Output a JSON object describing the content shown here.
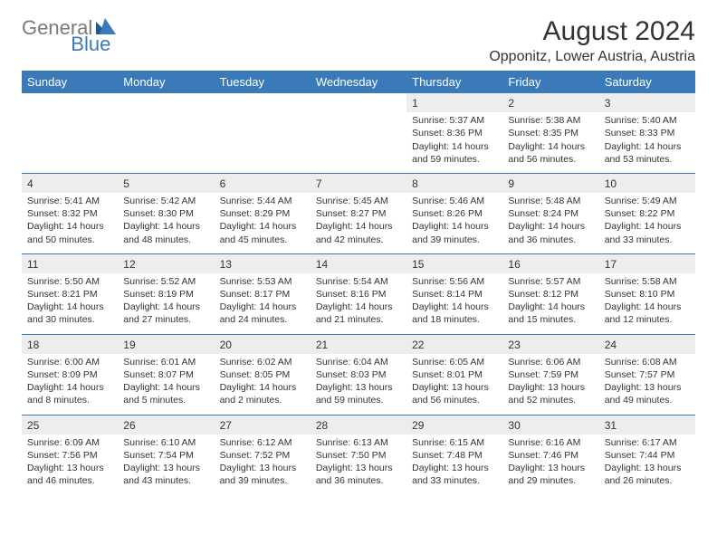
{
  "logo": {
    "part1": "General",
    "part2": "Blue"
  },
  "title": "August 2024",
  "location": "Opponitz, Lower Austria, Austria",
  "colors": {
    "header_bg": "#3a7ab8",
    "header_text": "#ffffff",
    "daynum_bg": "#ededed",
    "rule": "#3a7ab8",
    "logo_gray": "#7a7a7a",
    "logo_blue": "#3a7ab8"
  },
  "weekdays": [
    "Sunday",
    "Monday",
    "Tuesday",
    "Wednesday",
    "Thursday",
    "Friday",
    "Saturday"
  ],
  "weeks": [
    [
      null,
      null,
      null,
      null,
      {
        "n": "1",
        "sr": "Sunrise: 5:37 AM",
        "ss": "Sunset: 8:36 PM",
        "dl": "Daylight: 14 hours and 59 minutes."
      },
      {
        "n": "2",
        "sr": "Sunrise: 5:38 AM",
        "ss": "Sunset: 8:35 PM",
        "dl": "Daylight: 14 hours and 56 minutes."
      },
      {
        "n": "3",
        "sr": "Sunrise: 5:40 AM",
        "ss": "Sunset: 8:33 PM",
        "dl": "Daylight: 14 hours and 53 minutes."
      }
    ],
    [
      {
        "n": "4",
        "sr": "Sunrise: 5:41 AM",
        "ss": "Sunset: 8:32 PM",
        "dl": "Daylight: 14 hours and 50 minutes."
      },
      {
        "n": "5",
        "sr": "Sunrise: 5:42 AM",
        "ss": "Sunset: 8:30 PM",
        "dl": "Daylight: 14 hours and 48 minutes."
      },
      {
        "n": "6",
        "sr": "Sunrise: 5:44 AM",
        "ss": "Sunset: 8:29 PM",
        "dl": "Daylight: 14 hours and 45 minutes."
      },
      {
        "n": "7",
        "sr": "Sunrise: 5:45 AM",
        "ss": "Sunset: 8:27 PM",
        "dl": "Daylight: 14 hours and 42 minutes."
      },
      {
        "n": "8",
        "sr": "Sunrise: 5:46 AM",
        "ss": "Sunset: 8:26 PM",
        "dl": "Daylight: 14 hours and 39 minutes."
      },
      {
        "n": "9",
        "sr": "Sunrise: 5:48 AM",
        "ss": "Sunset: 8:24 PM",
        "dl": "Daylight: 14 hours and 36 minutes."
      },
      {
        "n": "10",
        "sr": "Sunrise: 5:49 AM",
        "ss": "Sunset: 8:22 PM",
        "dl": "Daylight: 14 hours and 33 minutes."
      }
    ],
    [
      {
        "n": "11",
        "sr": "Sunrise: 5:50 AM",
        "ss": "Sunset: 8:21 PM",
        "dl": "Daylight: 14 hours and 30 minutes."
      },
      {
        "n": "12",
        "sr": "Sunrise: 5:52 AM",
        "ss": "Sunset: 8:19 PM",
        "dl": "Daylight: 14 hours and 27 minutes."
      },
      {
        "n": "13",
        "sr": "Sunrise: 5:53 AM",
        "ss": "Sunset: 8:17 PM",
        "dl": "Daylight: 14 hours and 24 minutes."
      },
      {
        "n": "14",
        "sr": "Sunrise: 5:54 AM",
        "ss": "Sunset: 8:16 PM",
        "dl": "Daylight: 14 hours and 21 minutes."
      },
      {
        "n": "15",
        "sr": "Sunrise: 5:56 AM",
        "ss": "Sunset: 8:14 PM",
        "dl": "Daylight: 14 hours and 18 minutes."
      },
      {
        "n": "16",
        "sr": "Sunrise: 5:57 AM",
        "ss": "Sunset: 8:12 PM",
        "dl": "Daylight: 14 hours and 15 minutes."
      },
      {
        "n": "17",
        "sr": "Sunrise: 5:58 AM",
        "ss": "Sunset: 8:10 PM",
        "dl": "Daylight: 14 hours and 12 minutes."
      }
    ],
    [
      {
        "n": "18",
        "sr": "Sunrise: 6:00 AM",
        "ss": "Sunset: 8:09 PM",
        "dl": "Daylight: 14 hours and 8 minutes."
      },
      {
        "n": "19",
        "sr": "Sunrise: 6:01 AM",
        "ss": "Sunset: 8:07 PM",
        "dl": "Daylight: 14 hours and 5 minutes."
      },
      {
        "n": "20",
        "sr": "Sunrise: 6:02 AM",
        "ss": "Sunset: 8:05 PM",
        "dl": "Daylight: 14 hours and 2 minutes."
      },
      {
        "n": "21",
        "sr": "Sunrise: 6:04 AM",
        "ss": "Sunset: 8:03 PM",
        "dl": "Daylight: 13 hours and 59 minutes."
      },
      {
        "n": "22",
        "sr": "Sunrise: 6:05 AM",
        "ss": "Sunset: 8:01 PM",
        "dl": "Daylight: 13 hours and 56 minutes."
      },
      {
        "n": "23",
        "sr": "Sunrise: 6:06 AM",
        "ss": "Sunset: 7:59 PM",
        "dl": "Daylight: 13 hours and 52 minutes."
      },
      {
        "n": "24",
        "sr": "Sunrise: 6:08 AM",
        "ss": "Sunset: 7:57 PM",
        "dl": "Daylight: 13 hours and 49 minutes."
      }
    ],
    [
      {
        "n": "25",
        "sr": "Sunrise: 6:09 AM",
        "ss": "Sunset: 7:56 PM",
        "dl": "Daylight: 13 hours and 46 minutes."
      },
      {
        "n": "26",
        "sr": "Sunrise: 6:10 AM",
        "ss": "Sunset: 7:54 PM",
        "dl": "Daylight: 13 hours and 43 minutes."
      },
      {
        "n": "27",
        "sr": "Sunrise: 6:12 AM",
        "ss": "Sunset: 7:52 PM",
        "dl": "Daylight: 13 hours and 39 minutes."
      },
      {
        "n": "28",
        "sr": "Sunrise: 6:13 AM",
        "ss": "Sunset: 7:50 PM",
        "dl": "Daylight: 13 hours and 36 minutes."
      },
      {
        "n": "29",
        "sr": "Sunrise: 6:15 AM",
        "ss": "Sunset: 7:48 PM",
        "dl": "Daylight: 13 hours and 33 minutes."
      },
      {
        "n": "30",
        "sr": "Sunrise: 6:16 AM",
        "ss": "Sunset: 7:46 PM",
        "dl": "Daylight: 13 hours and 29 minutes."
      },
      {
        "n": "31",
        "sr": "Sunrise: 6:17 AM",
        "ss": "Sunset: 7:44 PM",
        "dl": "Daylight: 13 hours and 26 minutes."
      }
    ]
  ]
}
